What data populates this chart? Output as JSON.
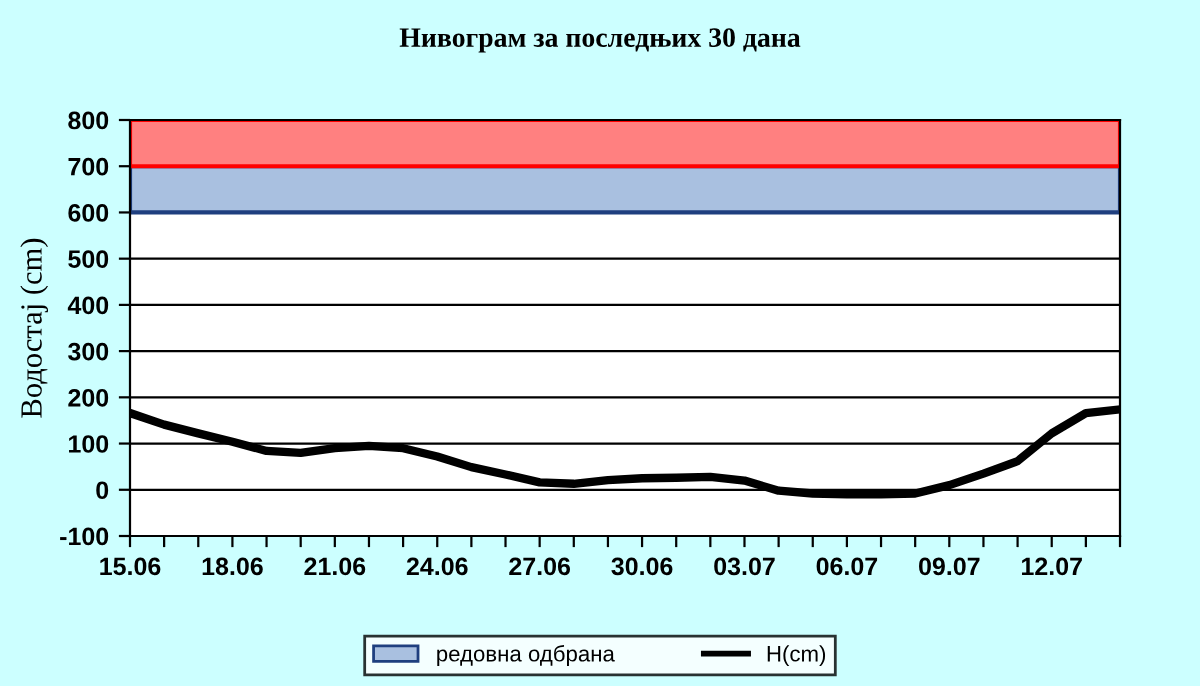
{
  "chart_data": {
    "type": "line",
    "title": "Нивограм за последњих 30 дана",
    "ylabel": "Водостај (cm)",
    "categories": [
      "15.06",
      null,
      null,
      "18.06",
      null,
      null,
      "21.06",
      null,
      null,
      "24.06",
      null,
      null,
      "27.06",
      null,
      null,
      "30.06",
      null,
      null,
      "03.07",
      null,
      null,
      "06.07",
      null,
      null,
      "09.07",
      null,
      null,
      "12.07",
      null,
      null
    ],
    "series": [
      {
        "name": "H(cm)",
        "color": "#000000",
        "values": [
          166,
          141,
          122,
          104,
          84,
          80,
          90,
          95,
          90,
          72,
          49,
          33,
          16,
          13,
          21,
          25,
          26,
          28,
          20,
          -2,
          -8,
          -10,
          -10,
          -8,
          10,
          35,
          62,
          122,
          166,
          174
        ]
      }
    ],
    "ylim": [
      -100,
      800
    ],
    "yticks": [
      -100,
      0,
      100,
      200,
      300,
      400,
      500,
      600,
      700,
      800
    ],
    "bands": [
      {
        "axis": "y",
        "from": 600,
        "to": 700,
        "label": "редовна одбрана",
        "color": "#a9c0e0"
      },
      {
        "axis": "y",
        "from": 700,
        "to": 800,
        "color": "#ff8080"
      }
    ],
    "grid": "y",
    "legend": "bottom",
    "marker": "none",
    "line_style": "solid"
  }
}
